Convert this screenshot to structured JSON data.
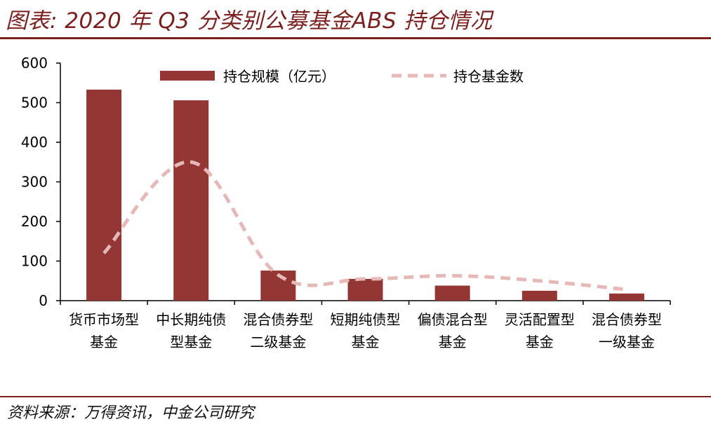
{
  "header": {
    "title": "图表: 2020 年 Q3 分类别公募基金ABS 持仓情况"
  },
  "footer": {
    "source": "资料来源：万得资讯，中金公司研究"
  },
  "colors": {
    "bar": "#943634",
    "line": "#e6b9b8",
    "accent": "#7b1f1f"
  },
  "chart_data": {
    "type": "bar",
    "categories": [
      [
        "货币市场型",
        "基金"
      ],
      [
        "中长期纯债",
        "型基金"
      ],
      [
        "混合债券型",
        "二级基金"
      ],
      [
        "短期纯债型",
        "基金"
      ],
      [
        "偏债混合型",
        "基金"
      ],
      [
        "灵活配置型",
        "基金"
      ],
      [
        "混合债券型",
        "一级基金"
      ]
    ],
    "series": [
      {
        "name": "持仓规模（亿元）",
        "type": "bar",
        "values": [
          533,
          506,
          76,
          55,
          38,
          25,
          18
        ]
      },
      {
        "name": "持仓基金数",
        "type": "line",
        "style": "dashed",
        "values": [
          120,
          350,
          65,
          55,
          63,
          50,
          28
        ]
      }
    ],
    "ylim": [
      0,
      600
    ],
    "yticks": [
      "0",
      "100",
      "200",
      "300",
      "400",
      "500",
      "600"
    ],
    "legend_position": "top",
    "grid": false
  }
}
